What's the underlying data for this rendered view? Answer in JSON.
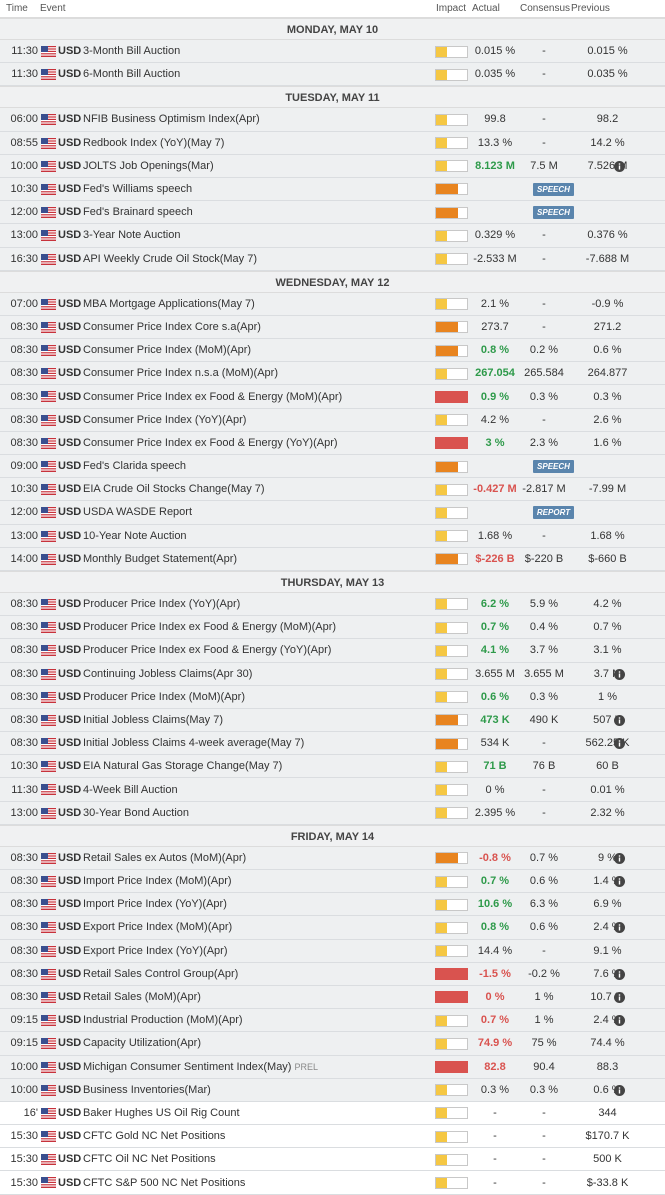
{
  "header": {
    "time": "Time",
    "event": "Event",
    "impact": "Impact",
    "actual": "Actual",
    "consensus": "Consensus",
    "previous": "Previous"
  },
  "days": [
    {
      "title": "MONDAY, MAY 10",
      "rows": [
        {
          "time": "11:30",
          "cur": "USD",
          "event": "3-Month Bill Auction",
          "impact": "low",
          "actual": "0.015 %",
          "consensus": "-",
          "previous": "0.015 %"
        },
        {
          "time": "11:30",
          "cur": "USD",
          "event": "6-Month Bill Auction",
          "impact": "low",
          "actual": "0.035 %",
          "consensus": "-",
          "previous": "0.035 %"
        }
      ]
    },
    {
      "title": "TUESDAY, MAY 11",
      "rows": [
        {
          "time": "06:00",
          "cur": "USD",
          "event": "NFIB Business Optimism Index(Apr)",
          "impact": "low",
          "actual": "99.8",
          "consensus": "-",
          "previous": "98.2"
        },
        {
          "time": "08:55",
          "cur": "USD",
          "event": "Redbook Index (YoY)(May 7)",
          "impact": "low",
          "actual": "13.3 %",
          "consensus": "-",
          "previous": "14.2 %"
        },
        {
          "time": "10:00",
          "cur": "USD",
          "event": "JOLTS Job Openings(Mar)",
          "impact": "low",
          "actual": "8.123 M",
          "act_style": "pos",
          "consensus": "7.5 M",
          "previous": "7.526 M",
          "info": true
        },
        {
          "time": "10:30",
          "cur": "USD",
          "event": "Fed's Williams speech",
          "impact": "med",
          "badge": "SPEECH"
        },
        {
          "time": "12:00",
          "cur": "USD",
          "event": "Fed's Brainard speech",
          "impact": "med",
          "badge": "SPEECH"
        },
        {
          "time": "13:00",
          "cur": "USD",
          "event": "3-Year Note Auction",
          "impact": "low",
          "actual": "0.329 %",
          "consensus": "-",
          "previous": "0.376 %"
        },
        {
          "time": "16:30",
          "cur": "USD",
          "event": "API Weekly Crude Oil Stock(May 7)",
          "impact": "low",
          "actual": "-2.533 M",
          "consensus": "-",
          "previous": "-7.688 M"
        }
      ]
    },
    {
      "title": "WEDNESDAY, MAY 12",
      "rows": [
        {
          "time": "07:00",
          "cur": "USD",
          "event": "MBA Mortgage Applications(May 7)",
          "impact": "low",
          "actual": "2.1 %",
          "consensus": "-",
          "previous": "-0.9 %"
        },
        {
          "time": "08:30",
          "cur": "USD",
          "event": "Consumer Price Index Core s.a(Apr)",
          "impact": "med",
          "actual": "273.7",
          "consensus": "-",
          "previous": "271.2"
        },
        {
          "time": "08:30",
          "cur": "USD",
          "event": "Consumer Price Index (MoM)(Apr)",
          "impact": "med",
          "actual": "0.8 %",
          "act_style": "pos",
          "consensus": "0.2 %",
          "previous": "0.6 %"
        },
        {
          "time": "08:30",
          "cur": "USD",
          "event": "Consumer Price Index n.s.a (MoM)(Apr)",
          "impact": "low",
          "actual": "267.054",
          "act_style": "pos",
          "consensus": "265.584",
          "previous": "264.877"
        },
        {
          "time": "08:30",
          "cur": "USD",
          "event": "Consumer Price Index ex Food & Energy (MoM)(Apr)",
          "impact": "high",
          "actual": "0.9 %",
          "act_style": "pos",
          "consensus": "0.3 %",
          "previous": "0.3 %"
        },
        {
          "time": "08:30",
          "cur": "USD",
          "event": "Consumer Price Index (YoY)(Apr)",
          "impact": "low",
          "actual": "4.2 %",
          "consensus": "-",
          "previous": "2.6 %"
        },
        {
          "time": "08:30",
          "cur": "USD",
          "event": "Consumer Price Index ex Food & Energy (YoY)(Apr)",
          "impact": "high",
          "actual": "3 %",
          "act_style": "pos",
          "consensus": "2.3 %",
          "previous": "1.6 %"
        },
        {
          "time": "09:00",
          "cur": "USD",
          "event": "Fed's Clarida speech",
          "impact": "med",
          "badge": "SPEECH"
        },
        {
          "time": "10:30",
          "cur": "USD",
          "event": "EIA Crude Oil Stocks Change(May 7)",
          "impact": "low",
          "actual": "-0.427 M",
          "act_style": "neg",
          "consensus": "-2.817 M",
          "previous": "-7.99 M"
        },
        {
          "time": "12:00",
          "cur": "USD",
          "event": "USDA WASDE Report",
          "impact": "low",
          "badge": "REPORT"
        },
        {
          "time": "13:00",
          "cur": "USD",
          "event": "10-Year Note Auction",
          "impact": "low",
          "actual": "1.68 %",
          "consensus": "-",
          "previous": "1.68 %"
        },
        {
          "time": "14:00",
          "cur": "USD",
          "event": "Monthly Budget Statement(Apr)",
          "impact": "med",
          "actual": "$-226 B",
          "act_style": "neg",
          "consensus": "$-220 B",
          "previous": "$-660 B"
        }
      ]
    },
    {
      "title": "THURSDAY, MAY 13",
      "rows": [
        {
          "time": "08:30",
          "cur": "USD",
          "event": "Producer Price Index (YoY)(Apr)",
          "impact": "low",
          "actual": "6.2 %",
          "act_style": "pos",
          "consensus": "5.9 %",
          "previous": "4.2 %"
        },
        {
          "time": "08:30",
          "cur": "USD",
          "event": "Producer Price Index ex Food & Energy (MoM)(Apr)",
          "impact": "low",
          "actual": "0.7 %",
          "act_style": "pos",
          "consensus": "0.4 %",
          "previous": "0.7 %"
        },
        {
          "time": "08:30",
          "cur": "USD",
          "event": "Producer Price Index ex Food & Energy (YoY)(Apr)",
          "impact": "low",
          "actual": "4.1 %",
          "act_style": "pos",
          "consensus": "3.7 %",
          "previous": "3.1 %"
        },
        {
          "time": "08:30",
          "cur": "USD",
          "event": "Continuing Jobless Claims(Apr 30)",
          "impact": "low",
          "actual": "3.655 M",
          "consensus": "3.655 M",
          "previous": "3.7 M",
          "info": true
        },
        {
          "time": "08:30",
          "cur": "USD",
          "event": "Producer Price Index (MoM)(Apr)",
          "impact": "low",
          "actual": "0.6 %",
          "act_style": "pos",
          "consensus": "0.3 %",
          "previous": "1 %"
        },
        {
          "time": "08:30",
          "cur": "USD",
          "event": "Initial Jobless Claims(May 7)",
          "impact": "med",
          "actual": "473 K",
          "act_style": "pos",
          "consensus": "490 K",
          "previous": "507 K",
          "info": true
        },
        {
          "time": "08:30",
          "cur": "USD",
          "event": "Initial Jobless Claims 4-week average(May 7)",
          "impact": "med",
          "actual": "534 K",
          "consensus": "-",
          "previous": "562.25 K",
          "info": true
        },
        {
          "time": "10:30",
          "cur": "USD",
          "event": "EIA Natural Gas Storage Change(May 7)",
          "impact": "low",
          "actual": "71 B",
          "act_style": "pos",
          "consensus": "76 B",
          "previous": "60 B"
        },
        {
          "time": "11:30",
          "cur": "USD",
          "event": "4-Week Bill Auction",
          "impact": "low",
          "actual": "0 %",
          "consensus": "-",
          "previous": "0.01 %"
        },
        {
          "time": "13:00",
          "cur": "USD",
          "event": "30-Year Bond Auction",
          "impact": "low",
          "actual": "2.395 %",
          "consensus": "-",
          "previous": "2.32 %"
        }
      ]
    },
    {
      "title": "FRIDAY, MAY 14",
      "rows": [
        {
          "time": "08:30",
          "cur": "USD",
          "event": "Retail Sales ex Autos (MoM)(Apr)",
          "impact": "med",
          "actual": "-0.8 %",
          "act_style": "neg",
          "consensus": "0.7 %",
          "previous": "9 %",
          "info": true
        },
        {
          "time": "08:30",
          "cur": "USD",
          "event": "Import Price Index (MoM)(Apr)",
          "impact": "low",
          "actual": "0.7 %",
          "act_style": "pos",
          "consensus": "0.6 %",
          "previous": "1.4 %",
          "info": true
        },
        {
          "time": "08:30",
          "cur": "USD",
          "event": "Import Price Index (YoY)(Apr)",
          "impact": "low",
          "actual": "10.6 %",
          "act_style": "pos",
          "consensus": "6.3 %",
          "previous": "6.9 %"
        },
        {
          "time": "08:30",
          "cur": "USD",
          "event": "Export Price Index (MoM)(Apr)",
          "impact": "low",
          "actual": "0.8 %",
          "act_style": "pos",
          "consensus": "0.6 %",
          "previous": "2.4 %",
          "info": true
        },
        {
          "time": "08:30",
          "cur": "USD",
          "event": "Export Price Index (YoY)(Apr)",
          "impact": "low",
          "actual": "14.4 %",
          "consensus": "-",
          "previous": "9.1 %"
        },
        {
          "time": "08:30",
          "cur": "USD",
          "event": "Retail Sales Control Group(Apr)",
          "impact": "high",
          "actual": "-1.5 %",
          "act_style": "neg",
          "consensus": "-0.2 %",
          "previous": "7.6 %",
          "info": true
        },
        {
          "time": "08:30",
          "cur": "USD",
          "event": "Retail Sales (MoM)(Apr)",
          "impact": "high",
          "actual": "0 %",
          "act_style": "neg",
          "consensus": "1 %",
          "previous": "10.7 %",
          "info": true
        },
        {
          "time": "09:15",
          "cur": "USD",
          "event": "Industrial Production (MoM)(Apr)",
          "impact": "low",
          "actual": "0.7 %",
          "act_style": "neg",
          "consensus": "1 %",
          "previous": "2.4 %",
          "info": true
        },
        {
          "time": "09:15",
          "cur": "USD",
          "event": "Capacity Utilization(Apr)",
          "impact": "low",
          "actual": "74.9 %",
          "act_style": "neg",
          "consensus": "75 %",
          "previous": "74.4 %"
        },
        {
          "time": "10:00",
          "cur": "USD",
          "event": "Michigan Consumer Sentiment Index(May)",
          "prel": "PREL",
          "impact": "high",
          "actual": "82.8",
          "act_style": "neg",
          "consensus": "90.4",
          "previous": "88.3"
        },
        {
          "time": "10:00",
          "cur": "USD",
          "event": "Business Inventories(Mar)",
          "impact": "low",
          "actual": "0.3 %",
          "consensus": "0.3 %",
          "previous": "0.6 %",
          "info": true
        },
        {
          "time": "16'",
          "cur": "USD",
          "event": "Baker Hughes US Oil Rig Count",
          "impact": "low",
          "actual": "-",
          "consensus": "-",
          "previous": "344",
          "white": true
        },
        {
          "time": "15:30",
          "cur": "USD",
          "event": "CFTC Gold NC Net Positions",
          "impact": "low",
          "actual": "-",
          "consensus": "-",
          "previous": "$170.7 K",
          "white": true
        },
        {
          "time": "15:30",
          "cur": "USD",
          "event": "CFTC Oil NC Net Positions",
          "impact": "low",
          "actual": "-",
          "consensus": "-",
          "previous": "500 K",
          "white": true
        },
        {
          "time": "15:30",
          "cur": "USD",
          "event": "CFTC S&P 500 NC Net Positions",
          "impact": "low",
          "actual": "-",
          "consensus": "-",
          "previous": "$-33.8 K",
          "white": true
        }
      ]
    }
  ]
}
